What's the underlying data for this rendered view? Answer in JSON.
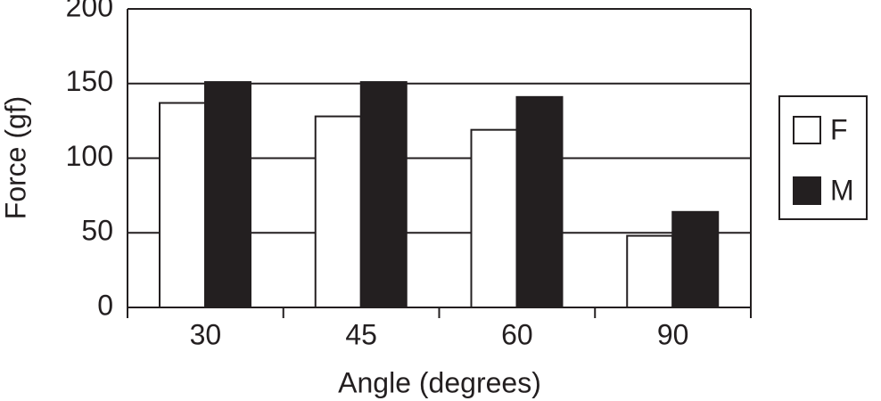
{
  "chart_data": {
    "type": "bar",
    "xlabel": "Angle (degrees)",
    "ylabel": "Force (gf)",
    "categories": [
      "30",
      "45",
      "60",
      "90"
    ],
    "series": [
      {
        "name": "F",
        "color": "#ffffff",
        "values": [
          137,
          128,
          119,
          48
        ]
      },
      {
        "name": "M",
        "color": "#231f20",
        "values": [
          151,
          151,
          141,
          64
        ]
      }
    ],
    "ylim": [
      0,
      200
    ],
    "yticks": [
      0,
      50,
      100,
      150,
      200
    ],
    "grid": true,
    "legend": "right"
  }
}
